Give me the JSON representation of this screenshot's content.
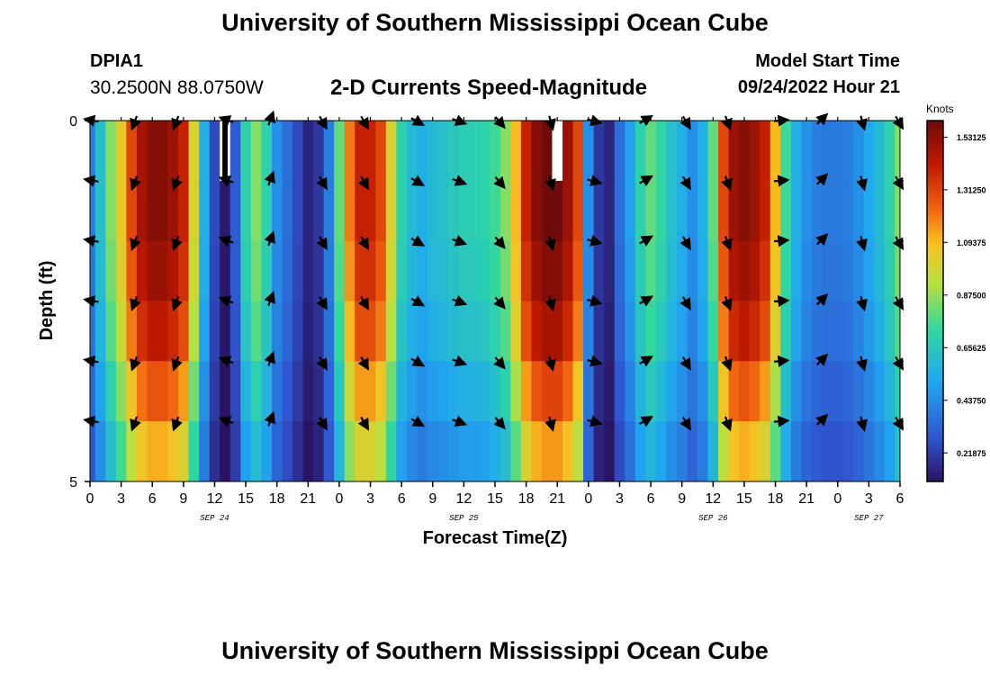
{
  "header": {
    "title": "University of Southern Mississippi Ocean Cube",
    "station_id": "DPIA1",
    "coordinates": "30.2500N  88.0750W",
    "chart_title": "2-D Currents Speed-Magnitude",
    "model_start_label": "Model Start Time",
    "model_start_value": "09/24/2022 Hour 21"
  },
  "footer": {
    "title": "University of Southern Mississippi Ocean Cube"
  },
  "chart_data": {
    "type": "heatmap",
    "title": "2-D Currents Speed-Magnitude",
    "xlabel": "Forecast Time(Z)",
    "ylabel": "Depth (ft)",
    "x_unit": "hours since 2022-09-24 00Z",
    "xlim": [
      0,
      78
    ],
    "ylim": [
      0,
      5
    ],
    "y_ticks": [
      "0",
      "5"
    ],
    "x_ticks": [
      0,
      3,
      6,
      9,
      12,
      15,
      18,
      21,
      24,
      27,
      30,
      33,
      36,
      39,
      42,
      45,
      48,
      51,
      54,
      57,
      60,
      63,
      66,
      69,
      72,
      75,
      78
    ],
    "x_tick_labels": [
      "0",
      "3",
      "6",
      "9",
      "12",
      "15",
      "18",
      "21",
      "0",
      "3",
      "6",
      "9",
      "12",
      "15",
      "18",
      "21",
      "0",
      "3",
      "6",
      "9",
      "12",
      "15",
      "18",
      "21",
      "0",
      "3",
      "6"
    ],
    "date_labels": [
      {
        "text": "SEP 24",
        "hour": 12
      },
      {
        "text": "SEP 25",
        "hour": 36
      },
      {
        "text": "SEP 26",
        "hour": 60
      },
      {
        "text": "SEP 27",
        "hour": 75
      }
    ],
    "colorbar": {
      "label": "Knots",
      "min": 0.1,
      "max": 1.6,
      "ticks": [
        "1.53125",
        "1.31250",
        "1.09375",
        "0.87500",
        "0.65625",
        "0.43750",
        "0.21875"
      ]
    },
    "speed_profile": {
      "hours": [
        0,
        1,
        2,
        3,
        4,
        5,
        6,
        7,
        8,
        9,
        10,
        11,
        12,
        13,
        14,
        15,
        16,
        17,
        18,
        19,
        20,
        21,
        22,
        23,
        24,
        25,
        26,
        27,
        28,
        29,
        30,
        31,
        32,
        33,
        34,
        35,
        36,
        37,
        38,
        39,
        40,
        41,
        42,
        43,
        44,
        45,
        46,
        47,
        48,
        49,
        50,
        51,
        52,
        53,
        54,
        55,
        56,
        57,
        58,
        59,
        60,
        61,
        62,
        63,
        64,
        65,
        66,
        67,
        68,
        69,
        70,
        71,
        72,
        73,
        74,
        75,
        76,
        77,
        78
      ],
      "knots": [
        0.4,
        0.62,
        0.85,
        1.05,
        1.3,
        1.48,
        1.55,
        1.55,
        1.5,
        1.4,
        1.0,
        0.55,
        0.25,
        0.12,
        0.3,
        0.7,
        0.85,
        0.7,
        0.45,
        0.35,
        0.25,
        0.15,
        0.2,
        0.4,
        0.8,
        1.2,
        1.4,
        1.4,
        1.3,
        1.0,
        0.7,
        0.6,
        0.55,
        0.6,
        0.62,
        0.65,
        0.68,
        0.68,
        0.7,
        0.75,
        0.85,
        1.1,
        1.4,
        1.55,
        1.6,
        1.6,
        1.5,
        1.3,
        0.45,
        0.2,
        0.15,
        0.35,
        0.5,
        0.7,
        0.8,
        0.72,
        0.62,
        0.55,
        0.45,
        0.55,
        0.8,
        1.3,
        1.5,
        1.55,
        1.5,
        1.4,
        1.1,
        0.75,
        0.55,
        0.45,
        0.4,
        0.38,
        0.38,
        0.4,
        0.45,
        0.52,
        0.6,
        0.7,
        0.85
      ]
    },
    "depth_factors": [
      1.0,
      1.0,
      0.97,
      0.92,
      0.82,
      0.72
    ],
    "missing_cells": [
      {
        "hour": 13,
        "depth_row": 0
      },
      {
        "hour": 45,
        "depth_row": 0
      }
    ],
    "vector_hours": [
      0,
      4,
      8,
      13,
      17,
      22,
      26,
      31,
      35,
      39,
      44,
      48,
      53,
      57,
      61,
      66,
      70,
      74,
      78
    ],
    "vector_depth_rows": [
      0,
      1,
      2,
      3,
      4,
      5
    ],
    "vector_directions_deg": [
      280,
      200,
      200,
      290,
      20,
      150,
      150,
      120,
      110,
      140,
      165,
      105,
      60,
      150,
      160,
      85,
      45,
      165,
      150
    ]
  }
}
